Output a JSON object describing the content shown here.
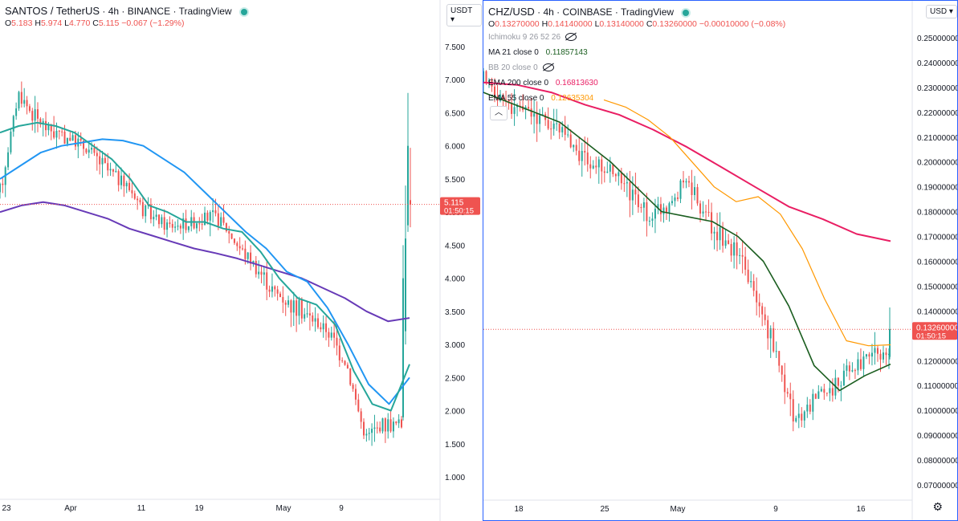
{
  "colors": {
    "up": "#26a69a",
    "down": "#ef5350",
    "left_fast": "#26a69a",
    "left_mid": "#2196f3",
    "left_slow": "#673ab7",
    "ma21": "#1b5e20",
    "ema55": "#ff9800",
    "ema200": "#e91e63",
    "price_tag": "#ef5350",
    "frame": "#2962ff"
  },
  "left": {
    "header": {
      "symbol": "SANTOS / TetherUS",
      "interval": "4h",
      "exchange": "BINANCE",
      "source": "TradingView",
      "sep": "·"
    },
    "ohlc": {
      "o_label": "O",
      "o": "5.183",
      "h_label": "H",
      "h": "5.974",
      "l_label": "L",
      "l": "4.770",
      "c_label": "C",
      "c": "5.115",
      "change": "−0.067 (−1.29%)"
    },
    "unit": "USDT",
    "last_price": "5.115",
    "countdown": "01:50:15",
    "y_ticks": [
      "7.500",
      "7.000",
      "6.500",
      "6.000",
      "5.500",
      "5.000",
      "4.500",
      "4.000",
      "3.500",
      "3.000",
      "2.500",
      "2.000",
      "1.500",
      "1.000"
    ],
    "x_ticks": [
      "23",
      "Apr",
      "11",
      "19",
      "May",
      "9"
    ]
  },
  "right": {
    "header": {
      "symbol": "CHZ/USD",
      "interval": "4h",
      "exchange": "COINBASE",
      "source": "TradingView",
      "sep": "·"
    },
    "ohlc": {
      "o_label": "O",
      "o": "0.13270000",
      "h_label": "H",
      "h": "0.14140000",
      "l_label": "L",
      "l": "0.13140000",
      "c_label": "C",
      "c": "0.13260000",
      "change": "−0.00010000 (−0.08%)"
    },
    "indicators": [
      {
        "name": "Ichimoku 9 26 52 26",
        "value": "",
        "color": "#9598a1",
        "hidden": true
      },
      {
        "name": "MA 21 close 0",
        "value": "0.11857143",
        "color": "#1b5e20",
        "hidden": false
      },
      {
        "name": "BB 20 close 0",
        "value": "",
        "color": "#9598a1",
        "hidden": true
      },
      {
        "name": "EMA 200 close 0",
        "value": "0.16813630",
        "color": "#e91e63",
        "hidden": false
      },
      {
        "name": "EMA 55 close 0",
        "value": "0.12635304",
        "color": "#ff9800",
        "hidden": false
      }
    ],
    "unit": "USD",
    "last_price": "0.13260000",
    "countdown": "01:50:15",
    "y_ticks": [
      "0.25000000",
      "0.24000000",
      "0.23000000",
      "0.22000000",
      "0.21000000",
      "0.20000000",
      "0.19000000",
      "0.18000000",
      "0.17000000",
      "0.16000000",
      "0.15000000",
      "0.14000000",
      "0.13000000",
      "0.12000000",
      "0.11000000",
      "0.10000000",
      "0.09000000",
      "0.08000000",
      "0.07000000"
    ],
    "x_ticks": [
      "18",
      "25",
      "May",
      "9",
      "16"
    ],
    "collapse_label": "︿"
  },
  "chart_data": [
    {
      "type": "line",
      "title": "SANTOS / TetherUS",
      "ylim": [
        1.0,
        7.5
      ],
      "x_ticks": [
        "23",
        "Apr",
        "11",
        "19",
        "May",
        "9"
      ],
      "series": [
        {
          "values": [
            5.0,
            5.1,
            5.15,
            5.1,
            5.0,
            4.9,
            4.75,
            4.65,
            4.55,
            4.45,
            4.38,
            4.3,
            4.2,
            4.1,
            4.0,
            3.85,
            3.7,
            3.5,
            3.35,
            3.4
          ]
        },
        {
          "values": [
            5.5,
            5.7,
            5.9,
            6.0,
            6.05,
            6.1,
            6.08,
            6.0,
            5.8,
            5.6,
            5.3,
            5.0,
            4.7,
            4.45,
            4.1,
            3.95,
            3.55,
            3.0,
            2.4,
            2.1,
            2.5
          ]
        },
        {
          "values": [
            6.2,
            6.3,
            6.35,
            6.3,
            6.2,
            6.0,
            5.8,
            5.5,
            5.1,
            5.0,
            4.85,
            4.85,
            4.75,
            4.7,
            4.4,
            4.0,
            3.7,
            3.6,
            3.3,
            2.6,
            2.1,
            2.0,
            2.7
          ]
        }
      ]
    },
    {
      "type": "line",
      "title": "CHZ/USD",
      "ylim": [
        0.07,
        0.25
      ],
      "x_ticks": [
        "18",
        "25",
        "May",
        "9",
        "16"
      ],
      "series": [
        {
          "values": [
            0.232,
            0.231,
            0.228,
            0.223,
            0.219,
            0.213,
            0.206,
            0.198,
            0.19,
            0.182,
            0.177,
            0.171,
            0.1681
          ]
        },
        {
          "values": [
            0.225,
            0.222,
            0.217,
            0.21,
            0.2,
            0.19,
            0.184,
            0.186,
            0.179,
            0.165,
            0.145,
            0.128,
            0.126,
            0.1264
          ]
        },
        {
          "values": [
            0.228,
            0.224,
            0.22,
            0.216,
            0.208,
            0.2,
            0.19,
            0.18,
            0.178,
            0.176,
            0.17,
            0.16,
            0.142,
            0.118,
            0.108,
            0.114,
            0.1186
          ]
        }
      ]
    }
  ]
}
